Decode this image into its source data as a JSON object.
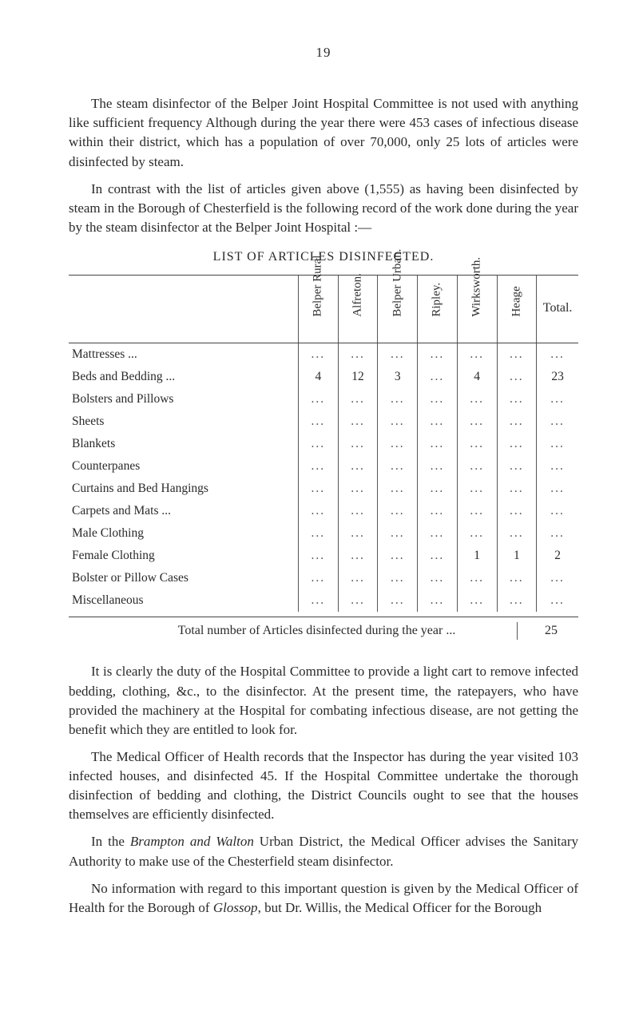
{
  "page_number": "19",
  "paragraphs": {
    "p1": "The steam disinfector of the Belper Joint Hospital Com­mittee is not used with anything like sufficient frequency Although during the year there were 453 cases of infectious disease within their district, which has a population of over 70,000, only 25 lots of articles were disinfected by steam.",
    "p2": "In contrast with the list of articles given above (1,555) as having been disinfected by steam in the Borough of Chester­field is the following record of the work done during the year by the steam disinfector at the Belper Joint Hospital :—",
    "p3": "It is clearly the duty of the Hospital Committee to provide a light cart to remove infected bedding, clothing, &c., to the disinfector. At the present time, the ratepayers, who have provided the machinery at the Hospital for combating infectious disease, are not getting the benefit which they are entitled to look for.",
    "p4": "The Medical Officer of Health records that the Inspector has during the year visited 103 infected houses, and disin­fected 45. If the Hospital Committee undertake the thorough disinfection of bedding and clothing, the District Councils ought to see that the houses themselves are efficiently dis­infected.",
    "p5_prefix": "In the ",
    "p5_italic": "Brampton and Walton",
    "p5_suffix": " Urban District, the Medical Officer advises the Sanitary Authority to make use of the Chesterfield steam disinfector.",
    "p6_prefix": "No information with regard to this important question is given by the Medical Officer of Health for the Borough of ",
    "p6_italic": "Glossop",
    "p6_suffix": ", but Dr. Willis, the Medical Officer for the Borough"
  },
  "table": {
    "title": "LIST OF ARTICLES DISINFECTED.",
    "columns": [
      "Belper Rural.",
      "Alfreton.",
      "Belper Urban.",
      "Ripley.",
      "Wirks­worth.",
      "Heage"
    ],
    "total_header": "Total.",
    "rows": [
      {
        "label": "Mattresses   ...",
        "cells": [
          "",
          "",
          "",
          "",
          "",
          ""
        ],
        "total": ""
      },
      {
        "label": "Beds and Bedding ...",
        "cells": [
          "4",
          "12",
          "3",
          "",
          "4",
          ""
        ],
        "total": "23"
      },
      {
        "label": "Bolsters and Pillows",
        "cells": [
          "",
          "",
          "",
          "",
          "",
          ""
        ],
        "total": ""
      },
      {
        "label": "Sheets",
        "cells": [
          "",
          "",
          "",
          "",
          "",
          ""
        ],
        "total": ""
      },
      {
        "label": "Blankets",
        "cells": [
          "",
          "",
          "",
          "",
          "",
          ""
        ],
        "total": ""
      },
      {
        "label": "Counterpanes",
        "cells": [
          "",
          "",
          "",
          "",
          "",
          ""
        ],
        "total": ""
      },
      {
        "label": "Curtains and Bed Hangings",
        "cells": [
          "",
          "",
          "",
          "",
          "",
          ""
        ],
        "total": ""
      },
      {
        "label": "Carpets and Mats   ...",
        "cells": [
          "",
          "",
          "",
          "",
          "",
          ""
        ],
        "total": ""
      },
      {
        "label": "Male Clothing",
        "cells": [
          "",
          "",
          "",
          "",
          "",
          ""
        ],
        "total": ""
      },
      {
        "label": "Female Clothing",
        "cells": [
          "",
          "",
          "",
          "",
          "1",
          "1"
        ],
        "total": "2"
      },
      {
        "label": "Bolster or Pillow Cases",
        "cells": [
          "",
          "",
          "",
          "",
          "",
          ""
        ],
        "total": ""
      },
      {
        "label": "Miscellaneous",
        "cells": [
          "",
          "",
          "",
          "",
          "",
          ""
        ],
        "total": ""
      }
    ],
    "summary_label": "Total number of Articles disinfected during the year ...",
    "summary_total": "25"
  },
  "style": {
    "text_color": "#2a2a2a",
    "border_color": "#444444",
    "bg": "#ffffff",
    "body_fontsize": 17,
    "table_fontsize": 15.5
  }
}
